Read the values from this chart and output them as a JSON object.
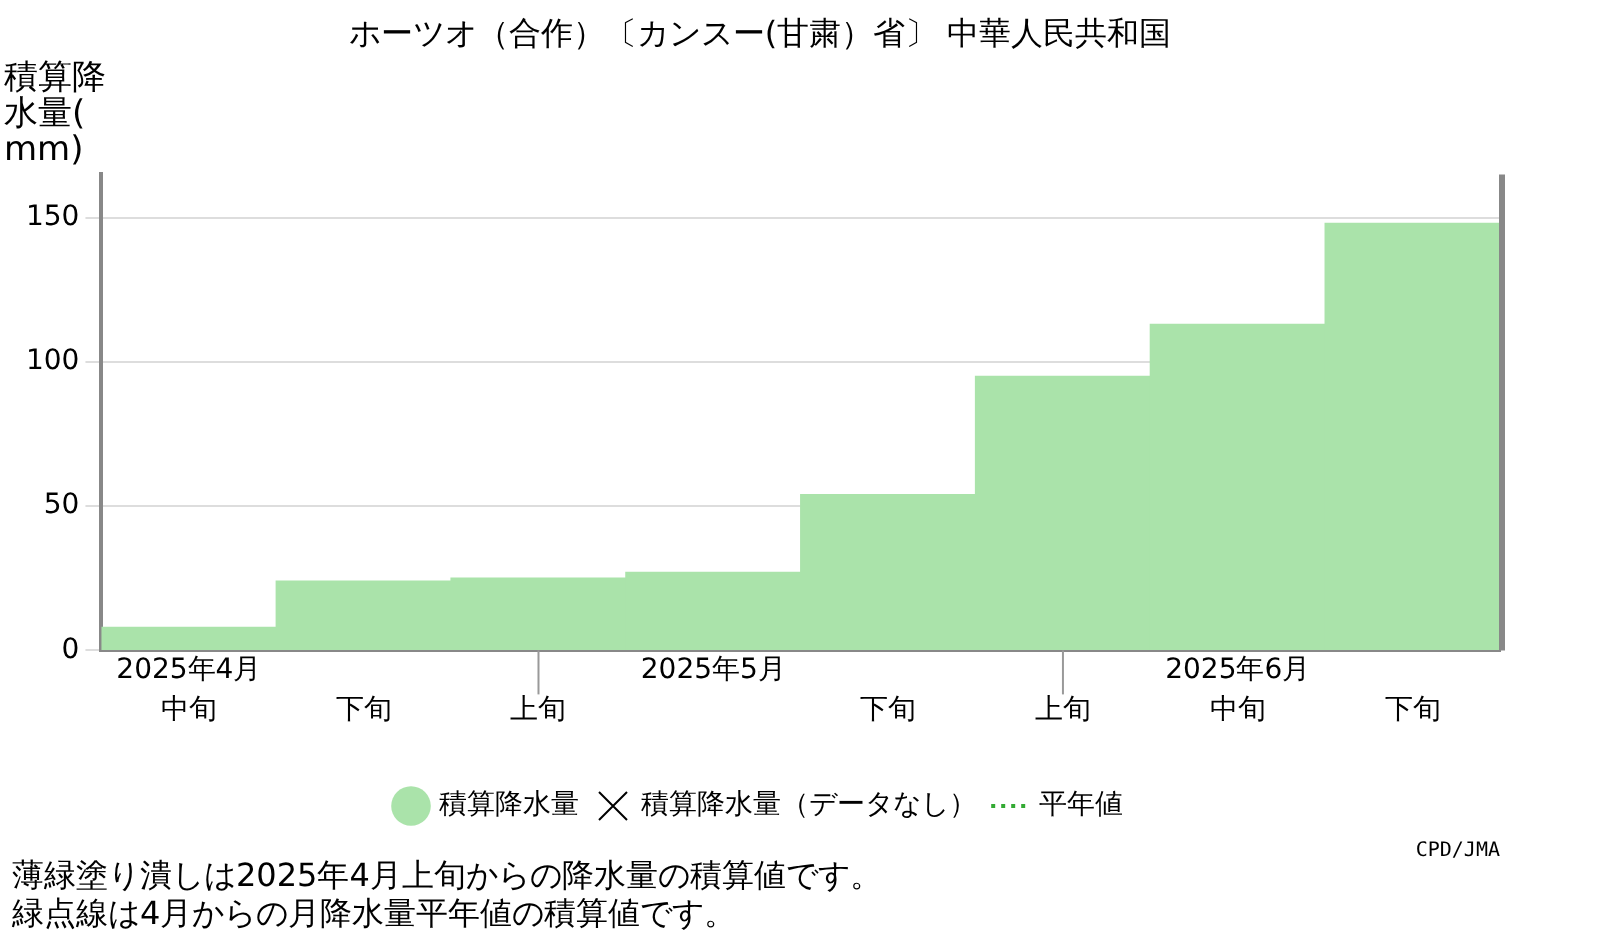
{
  "chart_data": {
    "type": "bar",
    "title": "ホーツオ（合作）〔カンスー(甘粛）省〕 中華人民共和国",
    "ylabel": "積算降水量(mm)",
    "categories": [
      "中旬",
      "下旬",
      "上旬",
      null,
      "下旬",
      "上旬",
      "中旬",
      "下旬"
    ],
    "series": [
      {
        "name": "積算降水量",
        "color": "#aae3aa",
        "values": [
          8,
          24,
          25,
          27,
          54,
          95,
          113,
          148
        ]
      },
      {
        "name": "積算降水量（データなし）",
        "type": "scatter",
        "marker": "cross",
        "color": "#000000",
        "values": [
          null,
          null,
          null,
          null,
          null,
          null,
          null,
          null
        ]
      },
      {
        "name": "平年値",
        "type": "line",
        "line_style": "dotted",
        "color": "#33aa33",
        "values": [
          null,
          null,
          null,
          null,
          null,
          null,
          null,
          null
        ]
      }
    ],
    "ylim": [
      0,
      165
    ],
    "yticks": [
      0,
      50,
      100,
      150
    ],
    "grid": "y",
    "legend": "bottom",
    "annotations": [
      "2025年4月",
      "2025年5月",
      "2025年6月",
      "薄緑塗り潰しは2025年4月上旬からの降水量の積算値です。",
      "緑点線は4月からの月降水量平年値の積算値です。",
      "CPD/JMA"
    ]
  }
}
